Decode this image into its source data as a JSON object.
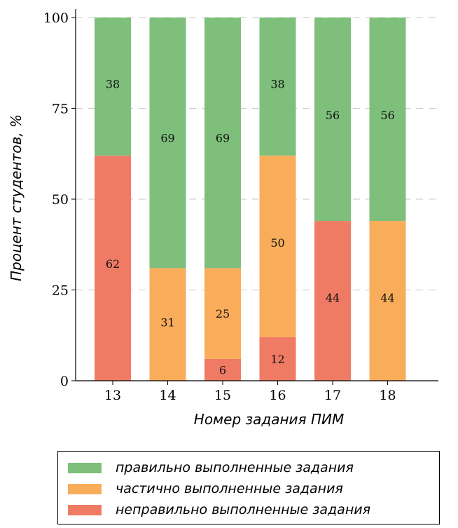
{
  "chart_data": {
    "type": "bar",
    "stacked": true,
    "categories": [
      "13",
      "14",
      "15",
      "16",
      "17",
      "18"
    ],
    "series": [
      {
        "name": "неправильно выполненные задания",
        "values": [
          62,
          0,
          6,
          12,
          44,
          0
        ],
        "color": "#f07b65"
      },
      {
        "name": "частично выполненные задания",
        "values": [
          0,
          31,
          25,
          50,
          0,
          44
        ],
        "color": "#f9ad5a"
      },
      {
        "name": "правильно выполненные задания",
        "values": [
          38,
          69,
          69,
          38,
          56,
          56
        ],
        "color": "#7dbf7b"
      }
    ],
    "title": "",
    "xlabel": "Номер задания ПИМ",
    "ylabel": "Процент студентов, %",
    "ylim": [
      0,
      100
    ],
    "yticks": [
      0,
      25,
      50,
      75,
      100
    ],
    "grid": "horizontal dashed",
    "legend_position": "bottom",
    "legend_order": [
      "правильно выполненные задания",
      "частично выполненные задания",
      "неправильно выполненные задания"
    ]
  }
}
